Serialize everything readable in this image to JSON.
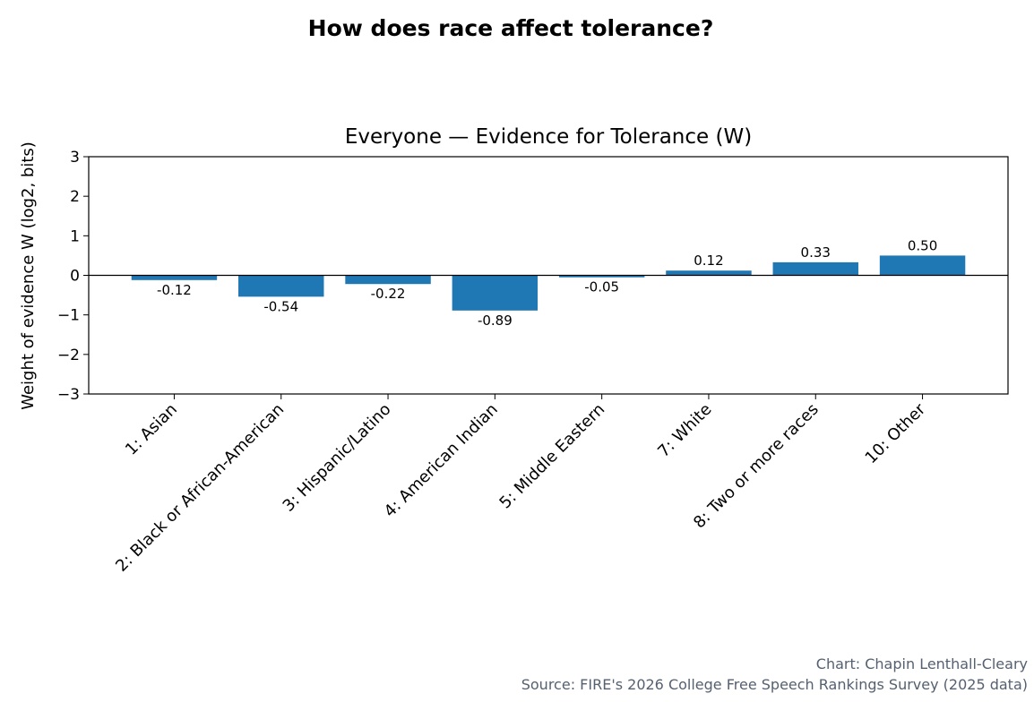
{
  "chart_data": {
    "type": "bar",
    "suptitle": "How does race affect tolerance?",
    "title": "Everyone — Evidence for Tolerance (W)",
    "xlabel": "",
    "ylabel": "Weight of evidence W (log2, bits)",
    "ylim": [
      -3,
      3
    ],
    "yticks": [
      3,
      2,
      1,
      0,
      -1,
      -2,
      -3
    ],
    "ytick_labels": [
      "3",
      "2",
      "1",
      "0",
      "−1",
      "−2",
      "−3"
    ],
    "categories": [
      "1: Asian",
      "2: Black or African-American",
      "3: Hispanic/Latino",
      "4: American Indian",
      "5: Middle Eastern",
      "7: White",
      "8: Two or more races",
      "10: Other"
    ],
    "values": [
      -0.12,
      -0.54,
      -0.22,
      -0.89,
      -0.05,
      0.12,
      0.33,
      0.5
    ],
    "value_labels": [
      "-0.12",
      "-0.54",
      "-0.22",
      "-0.89",
      "-0.05",
      "0.12",
      "0.33",
      "0.50"
    ],
    "bar_color": "#1f77b4",
    "grid": false,
    "zero_line": true
  },
  "footer": {
    "credit": "Chart: Chapin Lenthall-Cleary",
    "source": "Source: FIRE's 2026 College Free Speech Rankings Survey (2025 data)"
  }
}
